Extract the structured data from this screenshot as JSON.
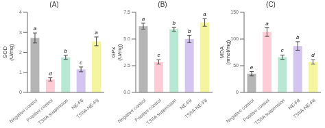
{
  "chart_data": [
    {
      "type": "bar",
      "title": "(A)",
      "ylabel": "SOD\n(U/mg)",
      "categories": [
        "Negative control",
        "Positive control",
        "TSIIA suspension",
        "NE-F8",
        "TSIIA-NE-F8"
      ],
      "values": [
        2.72,
        0.65,
        1.75,
        1.15,
        2.55
      ],
      "errors": [
        0.25,
        0.08,
        0.1,
        0.12,
        0.22
      ],
      "colors": [
        "#b5b5b5",
        "#ffccd5",
        "#b8e8d4",
        "#d4c4f0",
        "#f5f5a0"
      ],
      "annotations": [
        "a",
        "d",
        "b",
        "c",
        "a"
      ],
      "ylim": [
        0,
        4
      ],
      "yticks": [
        0,
        1,
        2,
        3,
        4
      ],
      "grid": false
    },
    {
      "type": "bar",
      "title": "(B)",
      "ylabel": "GPx\n(U/mg)",
      "categories": [
        "Negative control",
        "Positive control",
        "TSIIA suspension",
        "NE-F8",
        "TSIIA-NE-F8"
      ],
      "values": [
        6.2,
        2.85,
        5.9,
        5.0,
        6.55
      ],
      "errors": [
        0.28,
        0.2,
        0.18,
        0.35,
        0.35
      ],
      "colors": [
        "#b5b5b5",
        "#ffccd5",
        "#b8e8d4",
        "#d4c4f0",
        "#f5f5a0"
      ],
      "annotations": [
        "a",
        "c",
        "b",
        "b",
        "a"
      ],
      "ylim": [
        0,
        7.5
      ],
      "yticks": [
        {
          "value": 0,
          "label": "0.0"
        },
        2.5,
        {
          "value": 5,
          "label": "5.0"
        },
        7.5
      ],
      "grid": false
    },
    {
      "type": "bar",
      "title": "(C)",
      "ylabel": "MDA\n(nmol/mg)",
      "categories": [
        "Negative control",
        "Positive control",
        "TSIIA suspension",
        "NE-F8",
        "TSIIA-NE-F8"
      ],
      "values": [
        35,
        113,
        66,
        87,
        57
      ],
      "errors": [
        4,
        8,
        4,
        8,
        4
      ],
      "colors": [
        "#b5b5b5",
        "#ffccd5",
        "#b8e8d4",
        "#d4c4f0",
        "#f5f5a0"
      ],
      "annotations": [
        "e",
        "a",
        "c",
        "b",
        "d"
      ],
      "ylim": [
        0,
        150
      ],
      "yticks": [
        0,
        50,
        100,
        150
      ],
      "grid": false
    }
  ]
}
